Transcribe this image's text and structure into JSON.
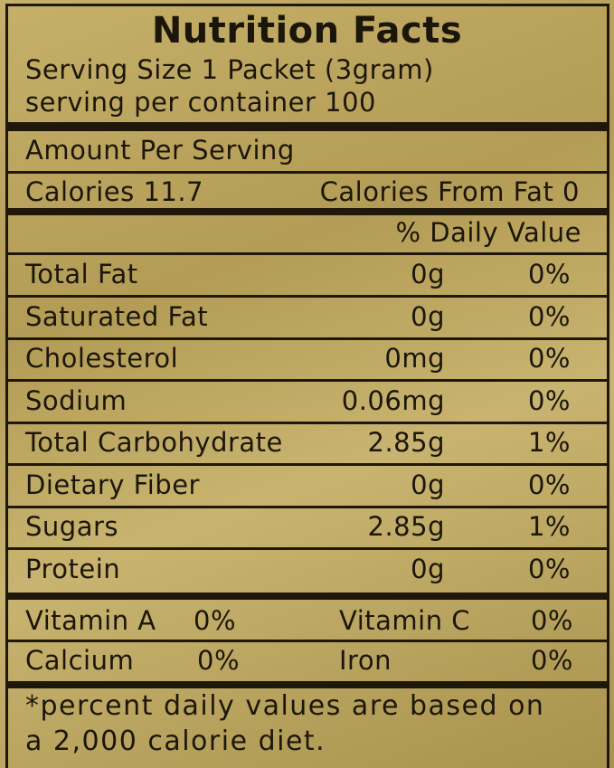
{
  "title": "Nutrition Facts",
  "serving_size": "Serving Size 1 Packet (3gram)",
  "servings_per_container": "serving per container 100",
  "amount_per_serving": "Amount Per Serving",
  "calories": "Calories 11.7",
  "calories_from_fat": "Calories From Fat 0",
  "daily_value_header": "% Daily Value",
  "nutrients": [
    [
      "Total Fat",
      "0g",
      "0%"
    ],
    [
      "Saturated Fat",
      "0g",
      "0%"
    ],
    [
      "Cholesterol",
      "0mg",
      "0%"
    ],
    [
      "Sodium",
      "0.06mg",
      "0%"
    ],
    [
      "Total Carbohydrate",
      "2.85g",
      "1%"
    ],
    [
      "Dietary Fiber",
      "0g",
      "0%"
    ],
    [
      "Sugars",
      "2.85g",
      "1%"
    ],
    [
      "Protein",
      "0g",
      "0%"
    ]
  ],
  "vitamins": [
    [
      [
        "Vitamin A",
        "0%"
      ],
      [
        "Vitamin C",
        "0%"
      ]
    ],
    [
      [
        "Calcium",
        "0%"
      ],
      [
        "Iron",
        "0%"
      ]
    ]
  ],
  "footnote": [
    "*percent daily values are based on",
    "a 2,000 calorie diet."
  ]
}
